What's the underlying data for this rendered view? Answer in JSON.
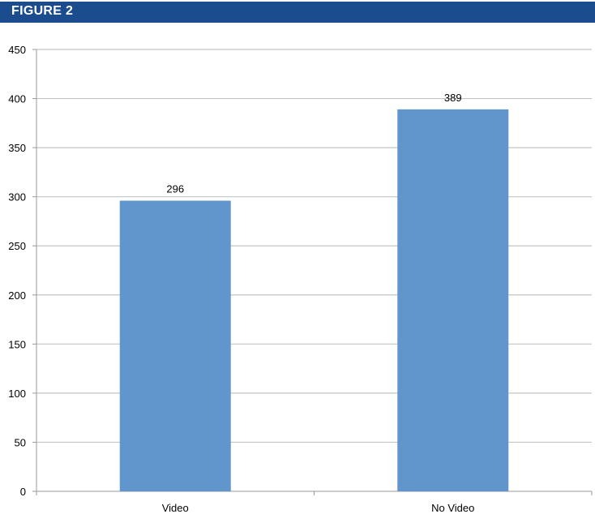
{
  "header": {
    "title": "FIGURE 2",
    "background_color": "#1a4c8e"
  },
  "chart_data": {
    "type": "bar",
    "categories": [
      "Video",
      "No Video"
    ],
    "values": [
      296,
      389
    ],
    "data_labels": [
      "296",
      "389"
    ],
    "ylim": [
      0,
      450
    ],
    "yticks": [
      0,
      50,
      100,
      150,
      200,
      250,
      300,
      350,
      400,
      450
    ],
    "title": "",
    "xlabel": "",
    "ylabel": "",
    "grid": true,
    "legend": "none",
    "bar_color": "#6096cb",
    "grid_color": "#c4c4c4"
  }
}
